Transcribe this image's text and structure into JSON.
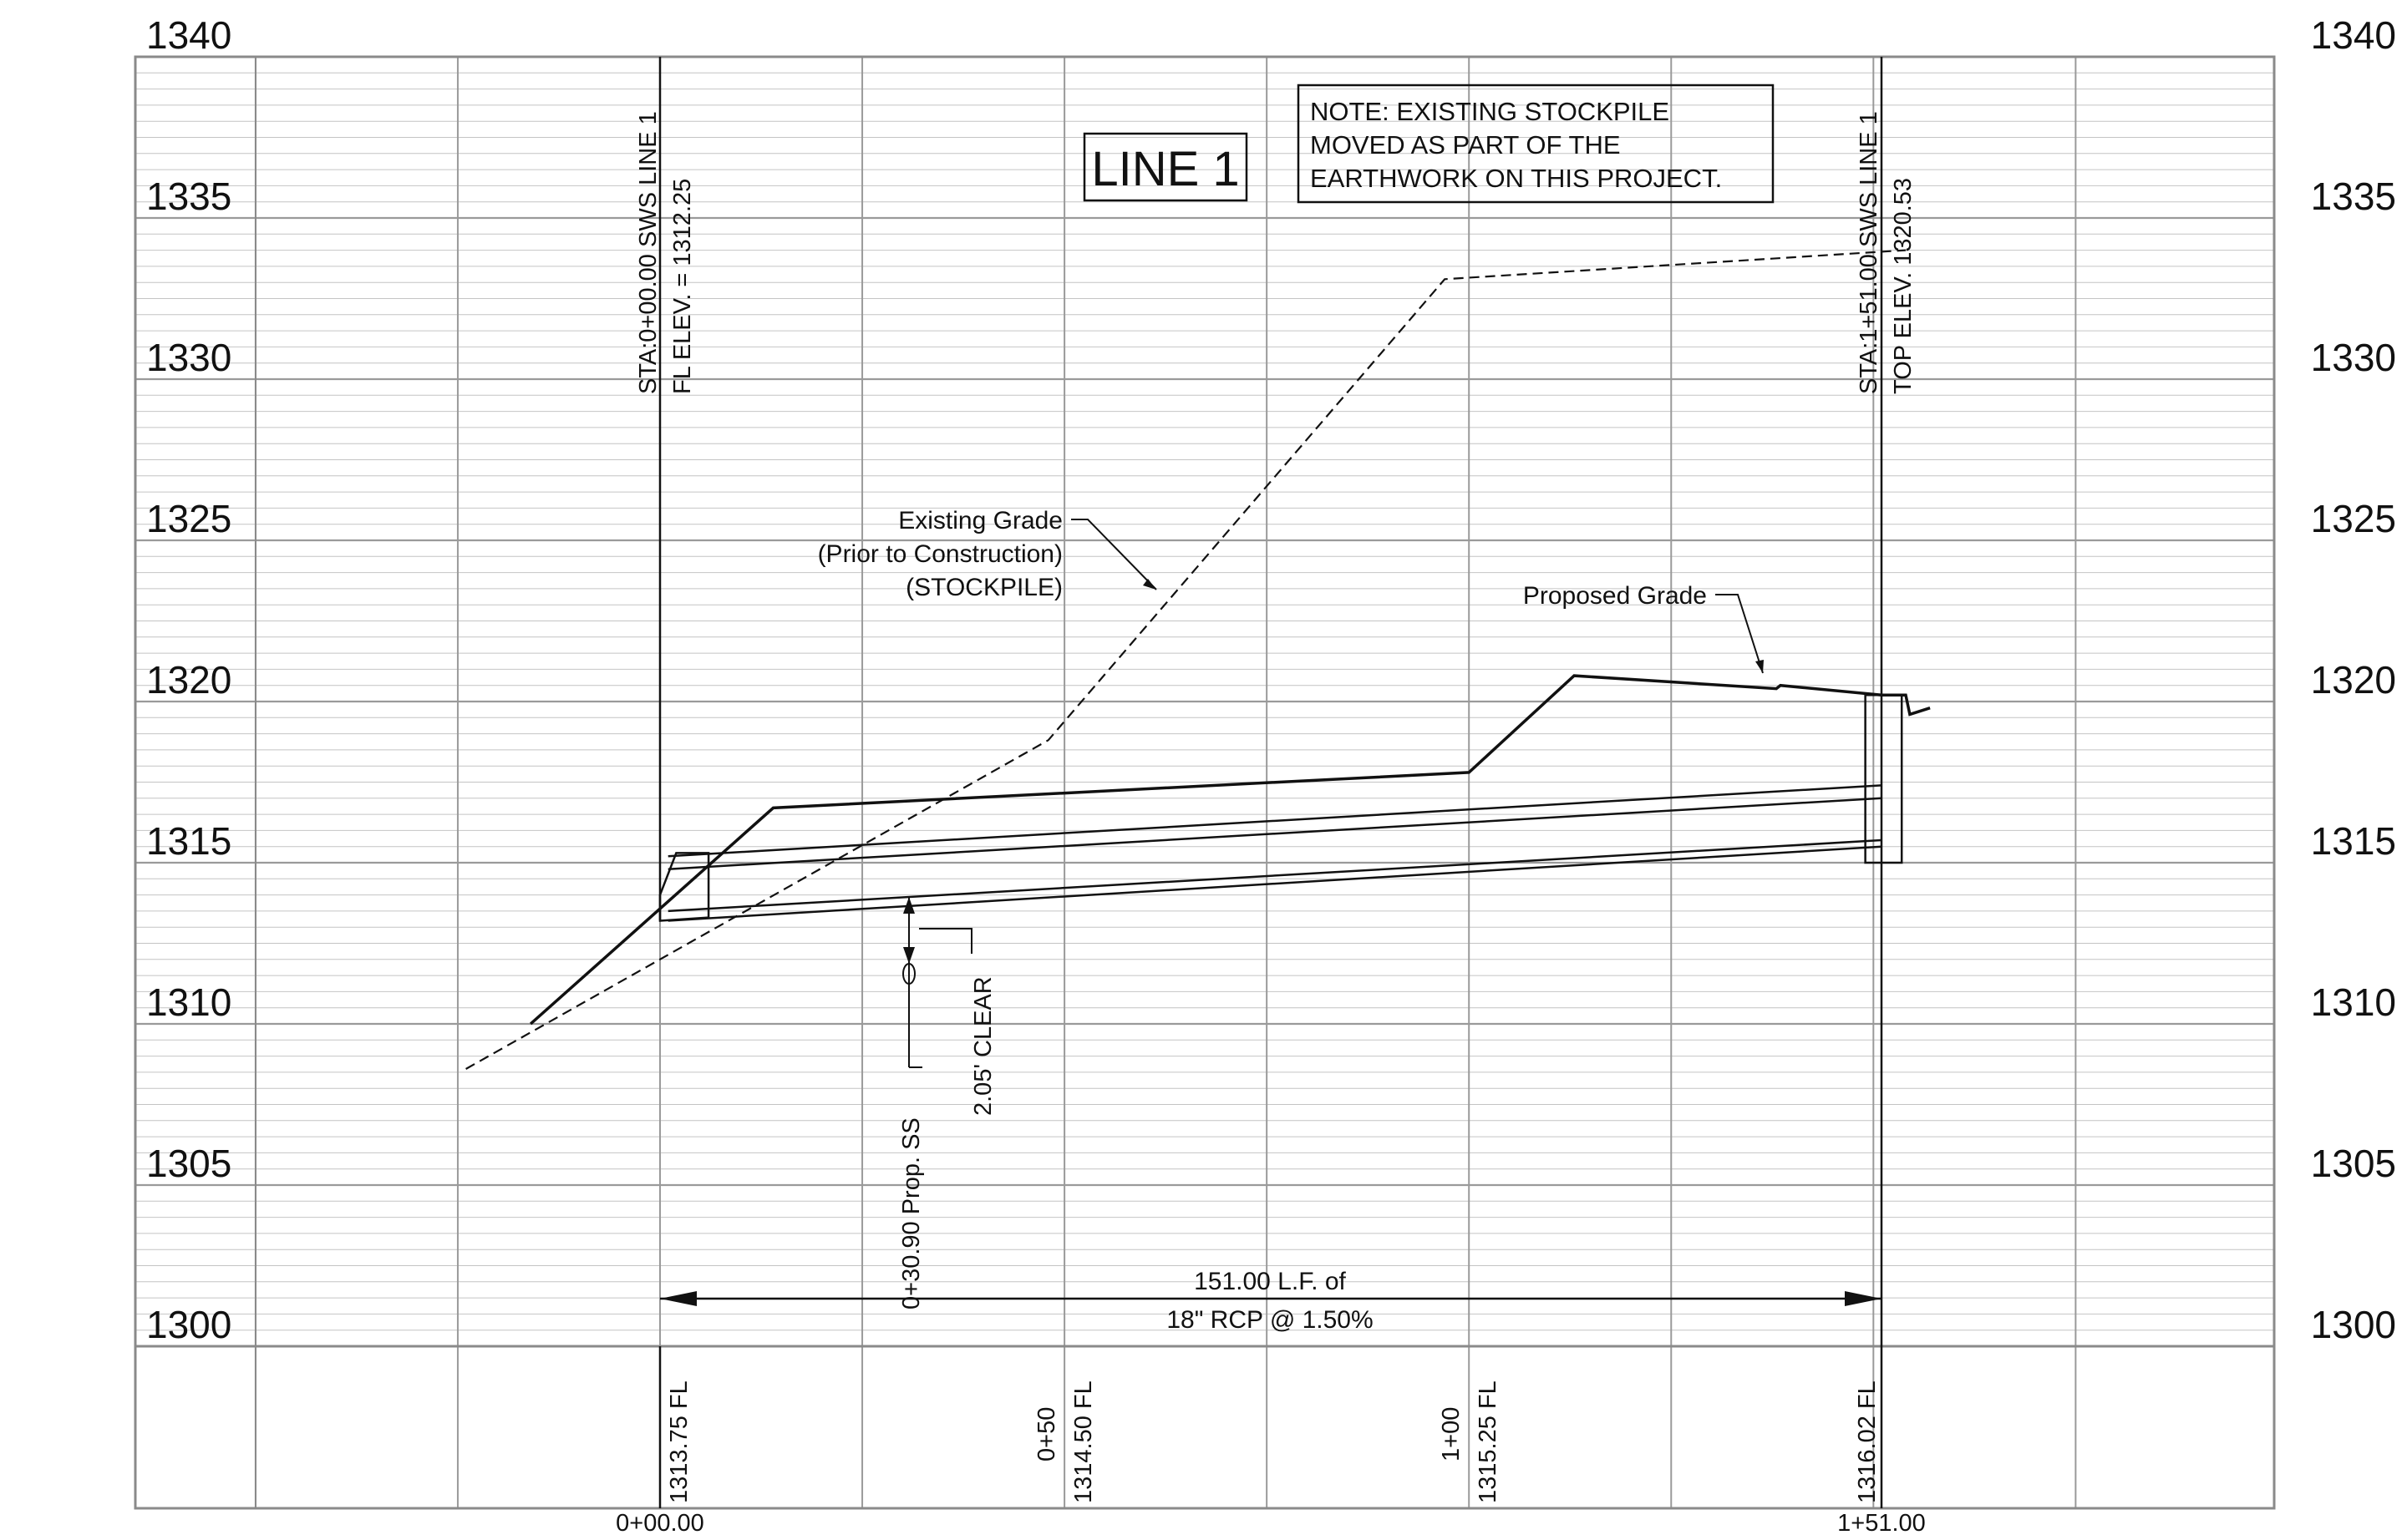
{
  "title": "LINE 1",
  "note": {
    "lines": [
      "NOTE: EXISTING STOCKPILE",
      "MOVED AS PART OF THE",
      "EARTHWORK ON THIS PROJECT."
    ]
  },
  "elevation_labels": [
    "1340",
    "1335",
    "1330",
    "1325",
    "1320",
    "1315",
    "1310",
    "1305",
    "1300"
  ],
  "elevation_values": [
    1340,
    1335,
    1330,
    1325,
    1320,
    1315,
    1310,
    1305,
    1300
  ],
  "structures": {
    "start": {
      "line1": "STA:0+00.00 SWS LINE 1",
      "line2": "FL ELEV. = 1312.25",
      "station": 0
    },
    "end": {
      "line1": "STA:1+51.00 SWS LINE 1",
      "line2": "TOP ELEV. 1320.53",
      "station": 151
    }
  },
  "callouts": {
    "existing_grade": [
      "Existing Grade",
      "(Prior to Construction)",
      "(STOCKPILE)"
    ],
    "proposed_grade": "Proposed Grade",
    "crossing": "0+30.90 Prop. SS",
    "clearance": "2.05' CLEAR"
  },
  "pipe_run": {
    "line1": "151.00 L.F. of",
    "line2": "18\" RCP @ 1.50%",
    "length_lf": 151.0,
    "slope_pct": 1.5
  },
  "bottom_labels": [
    {
      "station_label": "",
      "fl_label": "1313.75 FL",
      "station": 0
    },
    {
      "station_label": "0+50",
      "fl_label": "1314.50 FL",
      "station": 50
    },
    {
      "station_label": "1+00",
      "fl_label": "1315.25 FL",
      "station": 100
    },
    {
      "station_label": "",
      "fl_label": "1316.02 FL",
      "station": 151
    }
  ],
  "station_ticks": [
    {
      "label": "0+00.00",
      "station": 0
    },
    {
      "label": "1+51.00",
      "station": 151
    }
  ],
  "profiles": {
    "existing_grade": [
      [
        -24,
        1308.6
      ],
      [
        48,
        1318.8
      ],
      [
        97,
        1333.1
      ],
      [
        154,
        1334.0
      ]
    ],
    "proposed_grade": [
      [
        -16,
        1310.0
      ],
      [
        14,
        1316.7
      ],
      [
        100,
        1317.8
      ],
      [
        113,
        1320.8
      ],
      [
        138,
        1320.4
      ],
      [
        138.5,
        1320.5
      ],
      [
        151,
        1320.2
      ],
      [
        154,
        1320.2
      ],
      [
        154.5,
        1319.6
      ],
      [
        157,
        1319.8
      ]
    ],
    "pipe_crown_upper": [
      [
        1,
        1315.2
      ],
      [
        151,
        1317.4
      ]
    ],
    "pipe_crown_lower": [
      [
        1,
        1314.8
      ],
      [
        151,
        1317.0
      ]
    ],
    "pipe_invert_upper": [
      [
        1,
        1313.5
      ],
      [
        151,
        1315.7
      ]
    ],
    "pipe_invert_lower": [
      [
        1,
        1313.2
      ],
      [
        151,
        1315.5
      ]
    ]
  },
  "colors": {
    "line": "#111111",
    "grid_major": "#9a9a9a",
    "grid_minor": "#c4c4c4",
    "border": "#8a8a8a"
  }
}
